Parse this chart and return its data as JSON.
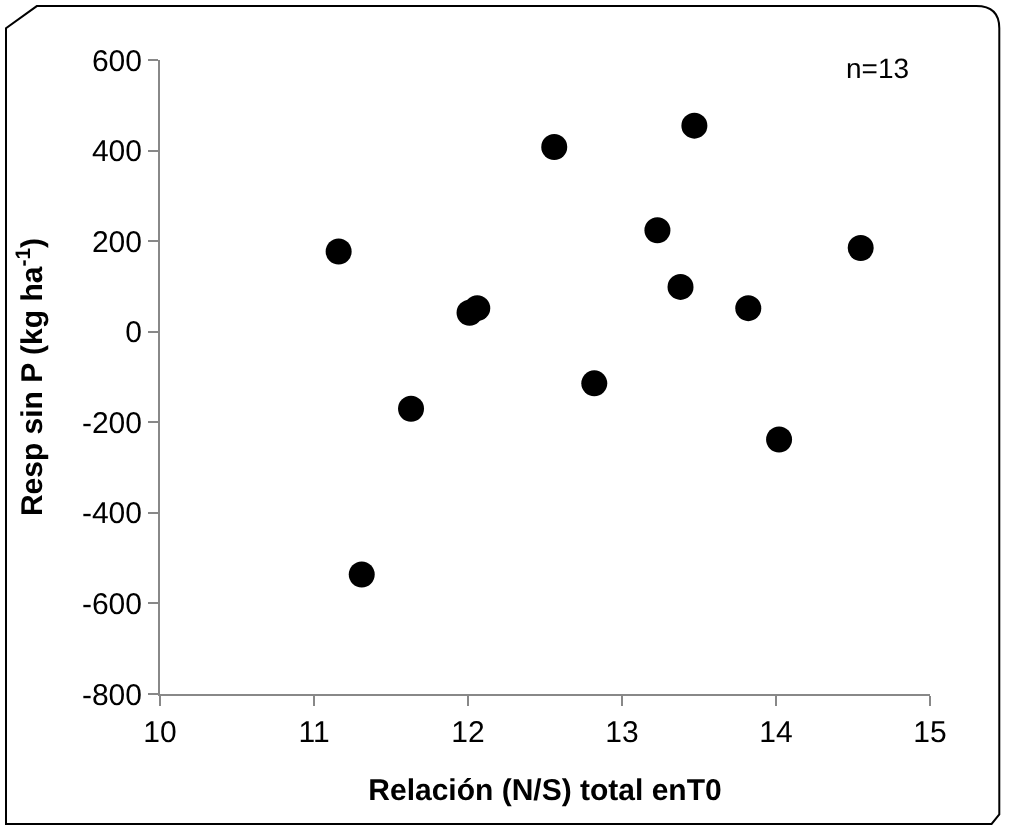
{
  "chart_data": {
    "type": "scatter",
    "xlabel": "Relación (N/S) total enT0",
    "ylabel": "Resp sin P (kg ha$^{-1}$)",
    "annotations": [
      "n=13"
    ],
    "x": [
      11.16,
      11.31,
      11.63,
      12.01,
      12.06,
      12.56,
      12.82,
      13.23,
      13.38,
      13.47,
      13.82,
      14.02,
      14.55
    ],
    "series": [
      {
        "color": "#000000",
        "values": [
          177,
          -536,
          -170,
          42,
          52,
          408,
          -114,
          224,
          99,
          455,
          52,
          -238,
          185
        ]
      }
    ],
    "xlim": [
      10,
      15
    ],
    "xticks": [
      10,
      11,
      12,
      13,
      14,
      15
    ],
    "ylim": [
      -800,
      600
    ],
    "yticks": [
      -800,
      -600,
      -400,
      -200,
      0,
      200,
      400,
      600
    ],
    "marker": "circle"
  }
}
